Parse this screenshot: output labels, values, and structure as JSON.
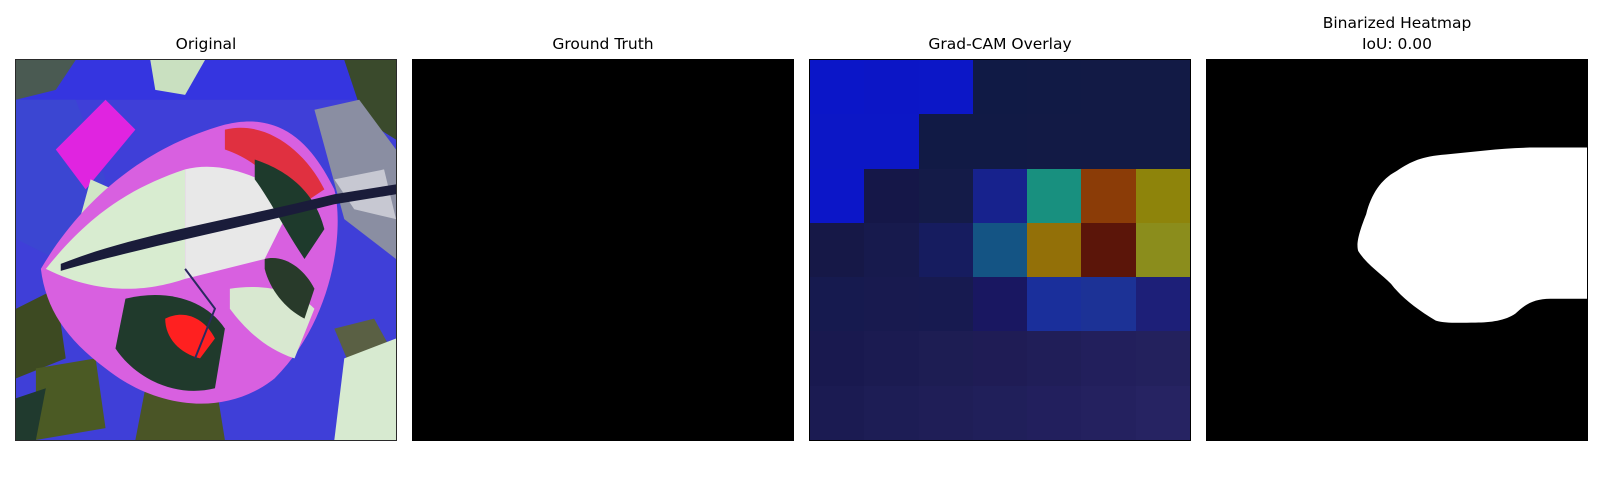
{
  "panels": [
    {
      "title": "Original"
    },
    {
      "title": "Ground Truth"
    },
    {
      "title": "Grad-CAM Overlay"
    },
    {
      "title": "Binarized Heatmap",
      "subtitle": "IoU: 0.00"
    }
  ],
  "gradcam_colors": [
    [
      "#0b16c8",
      "#0c16c6",
      "#0c17c7",
      "#101a45",
      "#111a45",
      "#121a45",
      "#121a45"
    ],
    [
      "#0c17c6",
      "#0c17c6",
      "#111a45",
      "#111a45",
      "#121a45",
      "#121a45",
      "#121a45"
    ],
    [
      "#0c16c8",
      "#151748",
      "#141b48",
      "#17228d",
      "#18907f",
      "#8b3c07",
      "#8e840b"
    ],
    [
      "#161847",
      "#171a4d",
      "#161c5f",
      "#145484",
      "#937008",
      "#5b1509",
      "#8b8d1c"
    ],
    [
      "#161a4f",
      "#181a4f",
      "#171a50",
      "#191761",
      "#1a2f9b",
      "#1c3296",
      "#1d1f78"
    ],
    [
      "#19194f",
      "#1b1b51",
      "#1d1d53",
      "#1f1c55",
      "#201e58",
      "#221f5c",
      "#23215d"
    ],
    [
      "#1b1b52",
      "#1d1d55",
      "#1f1e57",
      "#201f5a",
      "#221f5d",
      "#24215f",
      "#262362"
    ]
  ]
}
